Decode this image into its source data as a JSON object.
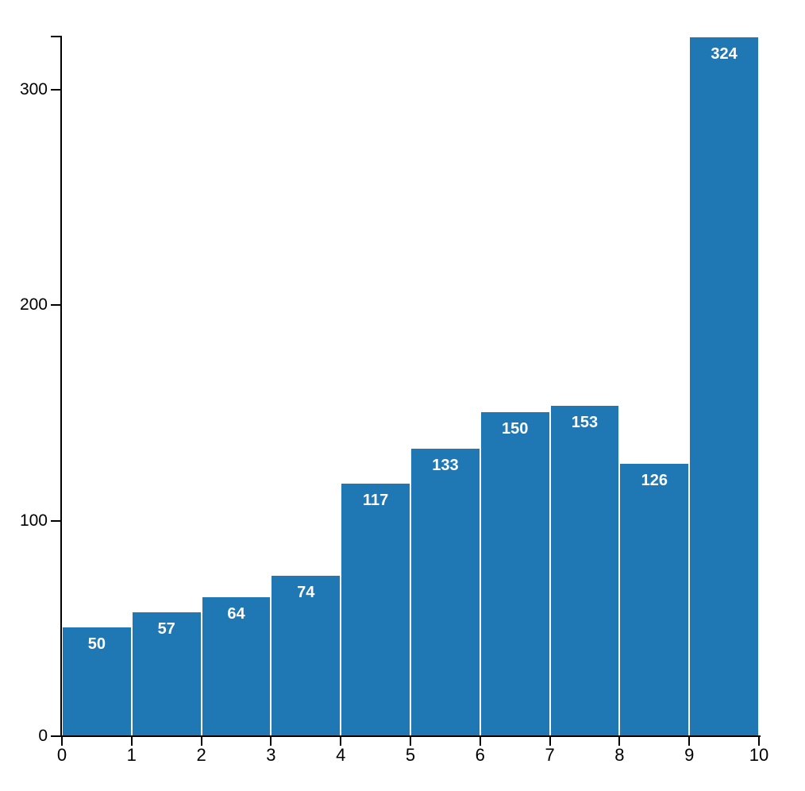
{
  "chart_data": {
    "type": "bar",
    "subtype": "histogram",
    "bin_edges": [
      0,
      1,
      2,
      3,
      4,
      5,
      6,
      7,
      8,
      9,
      10
    ],
    "values": [
      50,
      57,
      64,
      74,
      117,
      133,
      150,
      153,
      126,
      324
    ],
    "bar_labels": [
      "50",
      "57",
      "64",
      "74",
      "117",
      "133",
      "150",
      "153",
      "126",
      "324"
    ],
    "x_ticks": [
      0,
      1,
      2,
      3,
      4,
      5,
      6,
      7,
      8,
      9,
      10
    ],
    "x_tick_labels": [
      "0",
      "1",
      "2",
      "3",
      "4",
      "5",
      "6",
      "7",
      "8",
      "9",
      "10"
    ],
    "y_ticks": [
      0,
      100,
      200,
      300
    ],
    "y_tick_labels": [
      "0",
      "100",
      "200",
      "300"
    ],
    "xlim": [
      0,
      10
    ],
    "ylim": [
      0,
      325
    ],
    "xlabel": "",
    "ylabel": "",
    "grid": false,
    "legend_position": "none",
    "colors": {
      "bar": "#1f77b4",
      "bar_label": "#ffffff",
      "axis": "#000000",
      "background": "#ffffff"
    }
  }
}
